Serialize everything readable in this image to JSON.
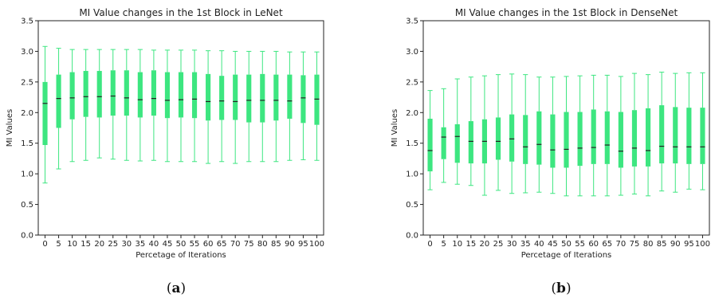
{
  "figure": {
    "panel_labels": [
      {
        "open": "(",
        "letter": "a",
        "close": ")"
      },
      {
        "open": "(",
        "letter": "b",
        "close": ")"
      }
    ]
  },
  "chart_data": [
    {
      "type": "boxplot",
      "title": "MI Value changes in the 1st Block in LeNet",
      "xlabel": "Percetage of Iterations",
      "ylabel": "MI Values",
      "ylim": [
        0.0,
        3.5
      ],
      "yticks": [
        "0.0",
        "0.5",
        "1.0",
        "1.5",
        "2.0",
        "2.5",
        "3.0",
        "3.5"
      ],
      "categories": [
        "0",
        "5",
        "10",
        "15",
        "20",
        "25",
        "30",
        "35",
        "40",
        "45",
        "50",
        "55",
        "60",
        "65",
        "70",
        "75",
        "80",
        "85",
        "90",
        "95",
        "100"
      ],
      "box_color": "#3de680",
      "median_color": "#222222",
      "grid": false,
      "boxes": [
        {
          "x": "0",
          "whislo": 0.85,
          "q1": 1.47,
          "med": 2.15,
          "q3": 2.5,
          "whishi": 3.08
        },
        {
          "x": "5",
          "whislo": 1.08,
          "q1": 1.75,
          "med": 2.23,
          "q3": 2.62,
          "whishi": 3.05
        },
        {
          "x": "10",
          "whislo": 1.2,
          "q1": 1.89,
          "med": 2.24,
          "q3": 2.66,
          "whishi": 3.03
        },
        {
          "x": "15",
          "whislo": 1.22,
          "q1": 1.93,
          "med": 2.26,
          "q3": 2.68,
          "whishi": 3.03
        },
        {
          "x": "20",
          "whislo": 1.26,
          "q1": 1.92,
          "med": 2.26,
          "q3": 2.68,
          "whishi": 3.03
        },
        {
          "x": "25",
          "whislo": 1.24,
          "q1": 1.95,
          "med": 2.27,
          "q3": 2.69,
          "whishi": 3.03
        },
        {
          "x": "30",
          "whislo": 1.22,
          "q1": 1.95,
          "med": 2.24,
          "q3": 2.69,
          "whishi": 3.03
        },
        {
          "x": "35",
          "whislo": 1.21,
          "q1": 1.92,
          "med": 2.21,
          "q3": 2.66,
          "whishi": 3.03
        },
        {
          "x": "40",
          "whislo": 1.22,
          "q1": 1.95,
          "med": 2.23,
          "q3": 2.69,
          "whishi": 3.02
        },
        {
          "x": "45",
          "whislo": 1.2,
          "q1": 1.91,
          "med": 2.2,
          "q3": 2.66,
          "whishi": 3.02
        },
        {
          "x": "50",
          "whislo": 1.2,
          "q1": 1.92,
          "med": 2.21,
          "q3": 2.66,
          "whishi": 3.02
        },
        {
          "x": "55",
          "whislo": 1.2,
          "q1": 1.91,
          "med": 2.22,
          "q3": 2.66,
          "whishi": 3.02
        },
        {
          "x": "60",
          "whislo": 1.17,
          "q1": 1.87,
          "med": 2.18,
          "q3": 2.63,
          "whishi": 3.01
        },
        {
          "x": "65",
          "whislo": 1.2,
          "q1": 1.88,
          "med": 2.19,
          "q3": 2.6,
          "whishi": 3.01
        },
        {
          "x": "70",
          "whislo": 1.17,
          "q1": 1.88,
          "med": 2.18,
          "q3": 2.62,
          "whishi": 3.0
        },
        {
          "x": "75",
          "whislo": 1.2,
          "q1": 1.84,
          "med": 2.2,
          "q3": 2.62,
          "whishi": 3.0
        },
        {
          "x": "80",
          "whislo": 1.2,
          "q1": 1.84,
          "med": 2.2,
          "q3": 2.63,
          "whishi": 3.0
        },
        {
          "x": "85",
          "whislo": 1.2,
          "q1": 1.87,
          "med": 2.2,
          "q3": 2.62,
          "whishi": 3.0
        },
        {
          "x": "90",
          "whislo": 1.22,
          "q1": 1.9,
          "med": 2.19,
          "q3": 2.62,
          "whishi": 2.99
        },
        {
          "x": "95",
          "whislo": 1.23,
          "q1": 1.83,
          "med": 2.24,
          "q3": 2.61,
          "whishi": 2.99
        },
        {
          "x": "100",
          "whislo": 1.22,
          "q1": 1.8,
          "med": 2.22,
          "q3": 2.62,
          "whishi": 2.99
        }
      ]
    },
    {
      "type": "boxplot",
      "title": "MI Value changes in the 1st Block in DenseNet",
      "xlabel": "Percetage of Iterations",
      "ylabel": "MI Values",
      "ylim": [
        0.0,
        3.5
      ],
      "yticks": [
        "0.0",
        "0.5",
        "1.0",
        "1.5",
        "2.0",
        "2.5",
        "3.0",
        "3.5"
      ],
      "categories": [
        "0",
        "5",
        "10",
        "15",
        "20",
        "25",
        "30",
        "35",
        "40",
        "45",
        "50",
        "55",
        "60",
        "65",
        "70",
        "75",
        "80",
        "85",
        "90",
        "95",
        "100"
      ],
      "box_color": "#3de680",
      "median_color": "#222222",
      "grid": false,
      "boxes": [
        {
          "x": "0",
          "whislo": 0.74,
          "q1": 1.04,
          "med": 1.38,
          "q3": 1.9,
          "whishi": 2.36
        },
        {
          "x": "5",
          "whislo": 0.86,
          "q1": 1.24,
          "med": 1.6,
          "q3": 1.76,
          "whishi": 2.39
        },
        {
          "x": "10",
          "whislo": 0.83,
          "q1": 1.18,
          "med": 1.61,
          "q3": 1.81,
          "whishi": 2.55
        },
        {
          "x": "15",
          "whislo": 0.81,
          "q1": 1.17,
          "med": 1.53,
          "q3": 1.86,
          "whishi": 2.58
        },
        {
          "x": "20",
          "whislo": 0.65,
          "q1": 1.17,
          "med": 1.53,
          "q3": 1.89,
          "whishi": 2.6
        },
        {
          "x": "25",
          "whislo": 0.73,
          "q1": 1.23,
          "med": 1.53,
          "q3": 1.92,
          "whishi": 2.62
        },
        {
          "x": "30",
          "whislo": 0.68,
          "q1": 1.2,
          "med": 1.57,
          "q3": 1.97,
          "whishi": 2.63
        },
        {
          "x": "35",
          "whislo": 0.69,
          "q1": 1.16,
          "med": 1.44,
          "q3": 1.96,
          "whishi": 2.62
        },
        {
          "x": "40",
          "whislo": 0.7,
          "q1": 1.15,
          "med": 1.48,
          "q3": 2.02,
          "whishi": 2.58
        },
        {
          "x": "45",
          "whislo": 0.68,
          "q1": 1.1,
          "med": 1.39,
          "q3": 1.97,
          "whishi": 2.58
        },
        {
          "x": "50",
          "whislo": 0.64,
          "q1": 1.1,
          "med": 1.4,
          "q3": 2.01,
          "whishi": 2.59
        },
        {
          "x": "55",
          "whislo": 0.64,
          "q1": 1.13,
          "med": 1.42,
          "q3": 2.01,
          "whishi": 2.6
        },
        {
          "x": "60",
          "whislo": 0.64,
          "q1": 1.16,
          "med": 1.43,
          "q3": 2.05,
          "whishi": 2.61
        },
        {
          "x": "65",
          "whislo": 0.64,
          "q1": 1.16,
          "med": 1.47,
          "q3": 2.02,
          "whishi": 2.61
        },
        {
          "x": "70",
          "whislo": 0.65,
          "q1": 1.1,
          "med": 1.37,
          "q3": 2.01,
          "whishi": 2.59
        },
        {
          "x": "75",
          "whislo": 0.67,
          "q1": 1.12,
          "med": 1.42,
          "q3": 2.04,
          "whishi": 2.64
        },
        {
          "x": "80",
          "whislo": 0.64,
          "q1": 1.12,
          "med": 1.38,
          "q3": 2.07,
          "whishi": 2.62
        },
        {
          "x": "85",
          "whislo": 0.72,
          "q1": 1.17,
          "med": 1.45,
          "q3": 2.12,
          "whishi": 2.66
        },
        {
          "x": "90",
          "whislo": 0.7,
          "q1": 1.17,
          "med": 1.44,
          "q3": 2.09,
          "whishi": 2.64
        },
        {
          "x": "95",
          "whislo": 0.75,
          "q1": 1.16,
          "med": 1.44,
          "q3": 2.08,
          "whishi": 2.65
        },
        {
          "x": "100",
          "whislo": 0.74,
          "q1": 1.16,
          "med": 1.44,
          "q3": 2.08,
          "whishi": 2.65
        }
      ]
    }
  ]
}
